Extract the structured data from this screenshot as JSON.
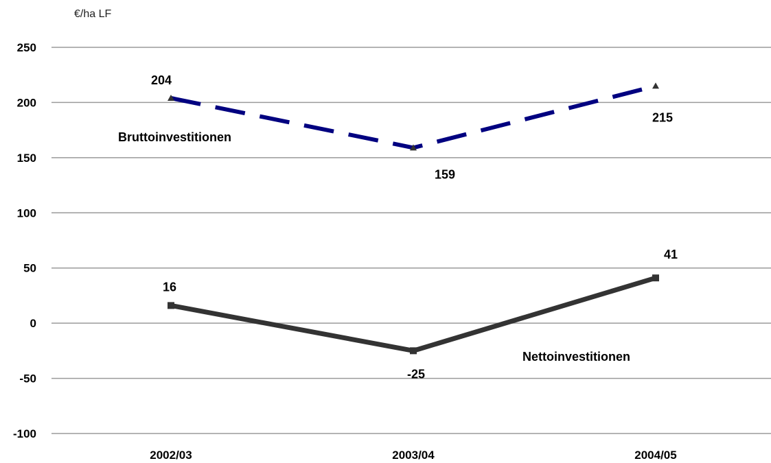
{
  "chart_data": {
    "type": "line",
    "unit_label": "€/ha LF",
    "categories": [
      "2002/03",
      "2003/04",
      "2004/05"
    ],
    "y_ticks": [
      {
        "value": 250,
        "label": "250"
      },
      {
        "value": 200,
        "label": "200"
      },
      {
        "value": 150,
        "label": "150"
      },
      {
        "value": 100,
        "label": "100"
      },
      {
        "value": 50,
        "label": "50"
      },
      {
        "value": 0,
        "label": "0"
      },
      {
        "value": -50,
        "label": "-50"
      },
      {
        "value": -100,
        "label": "-100"
      }
    ],
    "ylim": [
      -100,
      250
    ],
    "grid": true,
    "series": [
      {
        "name": "Bruttoinvestitionen",
        "values": [
          204,
          159,
          215
        ],
        "value_labels": [
          "204",
          "159",
          "215"
        ],
        "color": "#000080",
        "line_style": "dashed",
        "marker": "triangle",
        "label_position": "left"
      },
      {
        "name": "Nettoinvestitionen",
        "values": [
          16,
          -25,
          41
        ],
        "value_labels": [
          "16",
          "-25",
          "41"
        ],
        "color": "#333333",
        "line_style": "solid",
        "marker": "square",
        "label_position": "lower-right"
      }
    ]
  }
}
